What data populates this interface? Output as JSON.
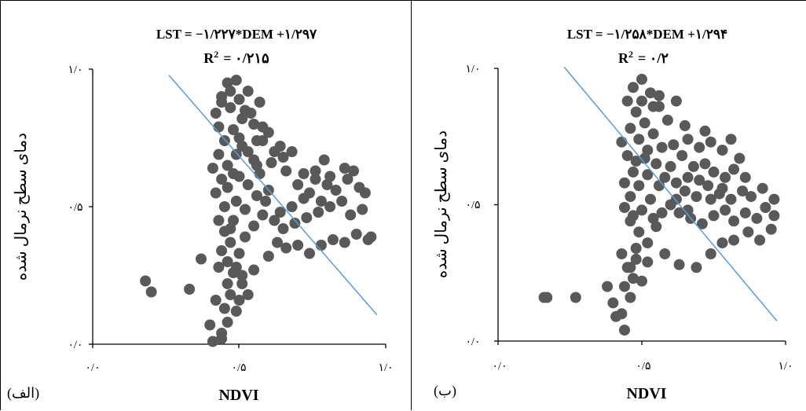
{
  "chart_data": [
    {
      "type": "scatter",
      "panel_label": "(الف)",
      "equation": "LST = −۱/۲۲۷*DEM +۱/۲۹۷",
      "r2_label": "R",
      "r2_sup": "2",
      "r2_value": "= ۰/۲۱۵",
      "xlabel": "NDVI",
      "ylabel": "دمای سطح نرمال شده",
      "xlim": [
        0,
        1
      ],
      "ylim": [
        0,
        1
      ],
      "x_tick_labels": [
        "۰/۰",
        "۰/۵",
        "۱/۰"
      ],
      "y_tick_labels": [
        "۰/۰",
        "۰/۵",
        "۱/۰"
      ],
      "trendline": {
        "slope": -1.227,
        "intercept": 1.297,
        "x_range": [
          0.26,
          0.97
        ],
        "color": "#5B9BD5"
      },
      "marker_color": "#595959",
      "points": [
        [
          0.18,
          0.23
        ],
        [
          0.2,
          0.19
        ],
        [
          0.33,
          0.2
        ],
        [
          0.37,
          0.31
        ],
        [
          0.42,
          0.16
        ],
        [
          0.4,
          0.07
        ],
        [
          0.44,
          0.04
        ],
        [
          0.46,
          0.08
        ],
        [
          0.45,
          0.13
        ],
        [
          0.49,
          0.12
        ],
        [
          0.47,
          0.18
        ],
        [
          0.5,
          0.16
        ],
        [
          0.46,
          0.22
        ],
        [
          0.48,
          0.26
        ],
        [
          0.53,
          0.18
        ],
        [
          0.51,
          0.22
        ],
        [
          0.55,
          0.27
        ],
        [
          0.43,
          0.28
        ],
        [
          0.44,
          0.02
        ],
        [
          0.41,
          0.01
        ],
        [
          0.6,
          0.32
        ],
        [
          0.63,
          0.37
        ],
        [
          0.66,
          0.35
        ],
        [
          0.7,
          0.36
        ],
        [
          0.74,
          0.33
        ],
        [
          0.78,
          0.36
        ],
        [
          0.82,
          0.38
        ],
        [
          0.86,
          0.37
        ],
        [
          0.9,
          0.4
        ],
        [
          0.94,
          0.38
        ],
        [
          0.95,
          0.39
        ],
        [
          0.92,
          0.49
        ],
        [
          0.88,
          0.47
        ],
        [
          0.85,
          0.52
        ],
        [
          0.81,
          0.5
        ],
        [
          0.77,
          0.48
        ],
        [
          0.73,
          0.46
        ],
        [
          0.69,
          0.44
        ],
        [
          0.65,
          0.42
        ],
        [
          0.62,
          0.45
        ],
        [
          0.83,
          0.56
        ],
        [
          0.87,
          0.6
        ],
        [
          0.91,
          0.57
        ],
        [
          0.93,
          0.55
        ],
        [
          0.89,
          0.63
        ],
        [
          0.86,
          0.64
        ],
        [
          0.81,
          0.61
        ],
        [
          0.79,
          0.67
        ],
        [
          0.76,
          0.63
        ],
        [
          0.72,
          0.62
        ],
        [
          0.68,
          0.7
        ],
        [
          0.65,
          0.68
        ],
        [
          0.61,
          0.66
        ],
        [
          0.64,
          0.72
        ],
        [
          0.6,
          0.77
        ],
        [
          0.56,
          0.74
        ],
        [
          0.58,
          0.79
        ],
        [
          0.54,
          0.84
        ],
        [
          0.57,
          0.88
        ],
        [
          0.53,
          0.92
        ],
        [
          0.49,
          0.96
        ],
        [
          0.46,
          0.95
        ],
        [
          0.44,
          0.9
        ],
        [
          0.47,
          0.86
        ],
        [
          0.51,
          0.82
        ],
        [
          0.48,
          0.78
        ],
        [
          0.45,
          0.74
        ],
        [
          0.43,
          0.69
        ],
        [
          0.46,
          0.65
        ],
        [
          0.5,
          0.61
        ],
        [
          0.53,
          0.58
        ],
        [
          0.56,
          0.54
        ],
        [
          0.59,
          0.52
        ],
        [
          0.52,
          0.49
        ],
        [
          0.48,
          0.45
        ],
        [
          0.45,
          0.5
        ],
        [
          0.42,
          0.55
        ],
        [
          0.44,
          0.6
        ],
        [
          0.41,
          0.64
        ],
        [
          0.43,
          0.79
        ],
        [
          0.42,
          0.84
        ],
        [
          0.44,
          0.88
        ],
        [
          0.47,
          0.92
        ],
        [
          0.5,
          0.89
        ],
        [
          0.52,
          0.85
        ],
        [
          0.55,
          0.8
        ],
        [
          0.58,
          0.74
        ],
        [
          0.62,
          0.7
        ],
        [
          0.66,
          0.63
        ],
        [
          0.7,
          0.58
        ],
        [
          0.74,
          0.55
        ],
        [
          0.78,
          0.52
        ],
        [
          0.8,
          0.58
        ],
        [
          0.76,
          0.6
        ],
        [
          0.72,
          0.53
        ],
        [
          0.68,
          0.5
        ],
        [
          0.64,
          0.48
        ],
        [
          0.6,
          0.56
        ],
        [
          0.57,
          0.62
        ],
        [
          0.55,
          0.67
        ],
        [
          0.51,
          0.72
        ],
        [
          0.49,
          0.69
        ],
        [
          0.46,
          0.57
        ],
        [
          0.43,
          0.45
        ],
        [
          0.45,
          0.41
        ],
        [
          0.47,
          0.37
        ],
        [
          0.5,
          0.33
        ],
        [
          0.52,
          0.39
        ],
        [
          0.55,
          0.43
        ],
        [
          0.58,
          0.47
        ],
        [
          0.44,
          0.34
        ],
        [
          0.46,
          0.3
        ],
        [
          0.49,
          0.28
        ],
        [
          0.51,
          0.25
        ],
        [
          0.47,
          0.42
        ],
        [
          0.49,
          0.52
        ],
        [
          0.5,
          0.75
        ],
        [
          0.53,
          0.7
        ],
        [
          0.56,
          0.65
        ],
        [
          0.48,
          0.62
        ]
      ]
    },
    {
      "type": "scatter",
      "panel_label": "(ب)",
      "equation": "LST = −۱/۲۵۸*DEM +۱/۲۹۴",
      "r2_label": "R",
      "r2_sup": "2",
      "r2_value": "= ۰/۲",
      "xlabel": "NDVI",
      "ylabel": "دمای سطح نرمال شده",
      "xlim": [
        0,
        1
      ],
      "ylim": [
        0,
        1
      ],
      "x_tick_labels": [
        "۰/۰",
        "۰/۵",
        "۱/۰"
      ],
      "y_tick_labels": [
        "۰/۰",
        "۰/۵",
        "۱/۰"
      ],
      "trendline": {
        "slope": -1.258,
        "intercept": 1.294,
        "x_range": [
          0.23,
          0.97
        ],
        "color": "#5B9BD5"
      },
      "marker_color": "#595959",
      "points": [
        [
          0.16,
          0.16
        ],
        [
          0.17,
          0.16
        ],
        [
          0.27,
          0.16
        ],
        [
          0.38,
          0.2
        ],
        [
          0.4,
          0.14
        ],
        [
          0.41,
          0.09
        ],
        [
          0.43,
          0.1
        ],
        [
          0.44,
          0.04
        ],
        [
          0.46,
          0.16
        ],
        [
          0.44,
          0.2
        ],
        [
          0.47,
          0.23
        ],
        [
          0.45,
          0.27
        ],
        [
          0.43,
          0.32
        ],
        [
          0.48,
          0.3
        ],
        [
          0.52,
          0.29
        ],
        [
          0.58,
          0.32
        ],
        [
          0.63,
          0.28
        ],
        [
          0.69,
          0.27
        ],
        [
          0.74,
          0.32
        ],
        [
          0.78,
          0.36
        ],
        [
          0.82,
          0.37
        ],
        [
          0.87,
          0.4
        ],
        [
          0.91,
          0.37
        ],
        [
          0.95,
          0.41
        ],
        [
          0.96,
          0.46
        ],
        [
          0.93,
          0.49
        ],
        [
          0.9,
          0.45
        ],
        [
          0.86,
          0.47
        ],
        [
          0.82,
          0.44
        ],
        [
          0.79,
          0.48
        ],
        [
          0.75,
          0.46
        ],
        [
          0.71,
          0.43
        ],
        [
          0.67,
          0.45
        ],
        [
          0.63,
          0.47
        ],
        [
          0.6,
          0.5
        ],
        [
          0.65,
          0.55
        ],
        [
          0.69,
          0.53
        ],
        [
          0.73,
          0.57
        ],
        [
          0.77,
          0.54
        ],
        [
          0.81,
          0.52
        ],
        [
          0.85,
          0.55
        ],
        [
          0.88,
          0.53
        ],
        [
          0.92,
          0.56
        ],
        [
          0.96,
          0.52
        ],
        [
          0.86,
          0.6
        ],
        [
          0.82,
          0.63
        ],
        [
          0.79,
          0.6
        ],
        [
          0.75,
          0.62
        ],
        [
          0.72,
          0.65
        ],
        [
          0.68,
          0.64
        ],
        [
          0.64,
          0.68
        ],
        [
          0.61,
          0.72
        ],
        [
          0.66,
          0.74
        ],
        [
          0.7,
          0.71
        ],
        [
          0.74,
          0.73
        ],
        [
          0.78,
          0.7
        ],
        [
          0.81,
          0.74
        ],
        [
          0.84,
          0.67
        ],
        [
          0.72,
          0.77
        ],
        [
          0.65,
          0.79
        ],
        [
          0.59,
          0.81
        ],
        [
          0.56,
          0.86
        ],
        [
          0.53,
          0.91
        ],
        [
          0.5,
          0.96
        ],
        [
          0.47,
          0.93
        ],
        [
          0.45,
          0.88
        ],
        [
          0.48,
          0.84
        ],
        [
          0.51,
          0.8
        ],
        [
          0.54,
          0.76
        ],
        [
          0.57,
          0.71
        ],
        [
          0.55,
          0.65
        ],
        [
          0.52,
          0.61
        ],
        [
          0.49,
          0.57
        ],
        [
          0.46,
          0.53
        ],
        [
          0.44,
          0.49
        ],
        [
          0.46,
          0.44
        ],
        [
          0.49,
          0.4
        ],
        [
          0.52,
          0.36
        ],
        [
          0.55,
          0.42
        ],
        [
          0.57,
          0.47
        ],
        [
          0.53,
          0.52
        ],
        [
          0.5,
          0.48
        ],
        [
          0.47,
          0.62
        ],
        [
          0.45,
          0.68
        ],
        [
          0.43,
          0.73
        ],
        [
          0.46,
          0.78
        ],
        [
          0.49,
          0.74
        ],
        [
          0.52,
          0.7
        ],
        [
          0.54,
          0.86
        ],
        [
          0.56,
          0.9
        ],
        [
          0.62,
          0.88
        ],
        [
          0.58,
          0.6
        ],
        [
          0.6,
          0.64
        ],
        [
          0.62,
          0.58
        ],
        [
          0.66,
          0.6
        ],
        [
          0.7,
          0.59
        ],
        [
          0.74,
          0.52
        ],
        [
          0.78,
          0.56
        ],
        [
          0.48,
          0.34
        ],
        [
          0.46,
          0.27
        ],
        [
          0.5,
          0.22
        ],
        [
          0.47,
          0.46
        ],
        [
          0.48,
          0.66
        ],
        [
          0.5,
          0.88
        ],
        [
          0.51,
          0.67
        ],
        [
          0.54,
          0.45
        ],
        [
          0.56,
          0.57
        ],
        [
          0.44,
          0.58
        ],
        [
          0.62,
          0.52
        ],
        [
          0.66,
          0.48
        ]
      ]
    }
  ]
}
